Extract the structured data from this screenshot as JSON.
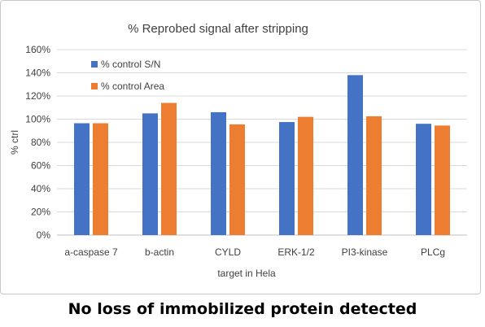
{
  "chart_data": {
    "type": "bar",
    "title": "% Reprobed signal after stripping",
    "xlabel": "target in Hela",
    "ylabel": "% ctrl",
    "ylim": [
      0,
      160
    ],
    "yticks": [
      0,
      20,
      40,
      60,
      80,
      100,
      120,
      140,
      160
    ],
    "ytick_labels": [
      "0%",
      "20%",
      "40%",
      "60%",
      "80%",
      "100%",
      "120%",
      "140%",
      "160%"
    ],
    "grid": true,
    "legend_position": "top-left",
    "categories": [
      "a-caspase 7",
      "b-actin",
      "CYLD",
      "ERK-1/2",
      "PI3-kinase",
      "PLCg"
    ],
    "series": [
      {
        "name": "% control S/N",
        "color": "#4472C4",
        "values": [
          96.5,
          105,
          106,
          97.5,
          138,
          96
        ]
      },
      {
        "name": "% control Area",
        "color": "#ED7D31",
        "values": [
          96.5,
          114,
          95.5,
          102,
          102.5,
          94.5
        ]
      }
    ]
  },
  "caption": "No loss of immobilized protein detected"
}
